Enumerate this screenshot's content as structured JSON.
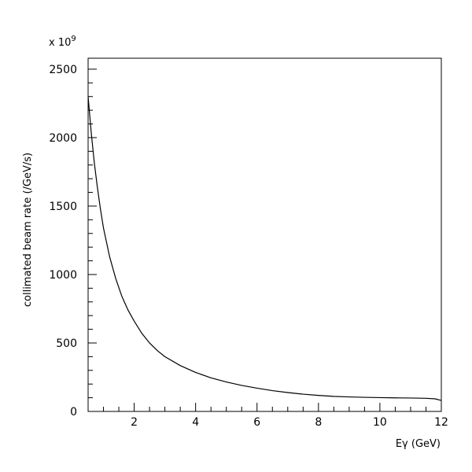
{
  "chart_data": {
    "type": "line",
    "title": "",
    "xlabel": "Eγ (GeV)",
    "ylabel": "collimated beam rate (/GeV/s)",
    "y_multiplier_base": "x 10",
    "y_multiplier_exp": "9",
    "xlim": [
      0.5,
      12
    ],
    "ylim": [
      0,
      2580
    ],
    "xticks": [
      2,
      4,
      6,
      8,
      10,
      12
    ],
    "yticks": [
      0,
      500,
      1000,
      1500,
      2000,
      2500
    ],
    "grid": false,
    "series": [
      {
        "x": [
          0.5,
          0.6,
          0.7,
          0.8,
          0.9,
          1.0,
          1.2,
          1.4,
          1.6,
          1.8,
          2.0,
          2.25,
          2.5,
          2.75,
          3.0,
          3.5,
          4.0,
          4.5,
          5.0,
          5.5,
          6.0,
          6.5,
          7.0,
          7.5,
          8.0,
          8.5,
          9.0,
          9.5,
          10.0,
          10.5,
          11.0,
          11.5,
          11.8,
          12.0
        ],
        "y": [
          2300,
          2040,
          1820,
          1640,
          1480,
          1340,
          1130,
          970,
          840,
          740,
          660,
          570,
          500,
          445,
          400,
          335,
          285,
          245,
          215,
          190,
          170,
          152,
          138,
          126,
          117,
          110,
          106,
          103,
          101,
          99,
          98,
          96,
          92,
          80
        ]
      }
    ]
  }
}
